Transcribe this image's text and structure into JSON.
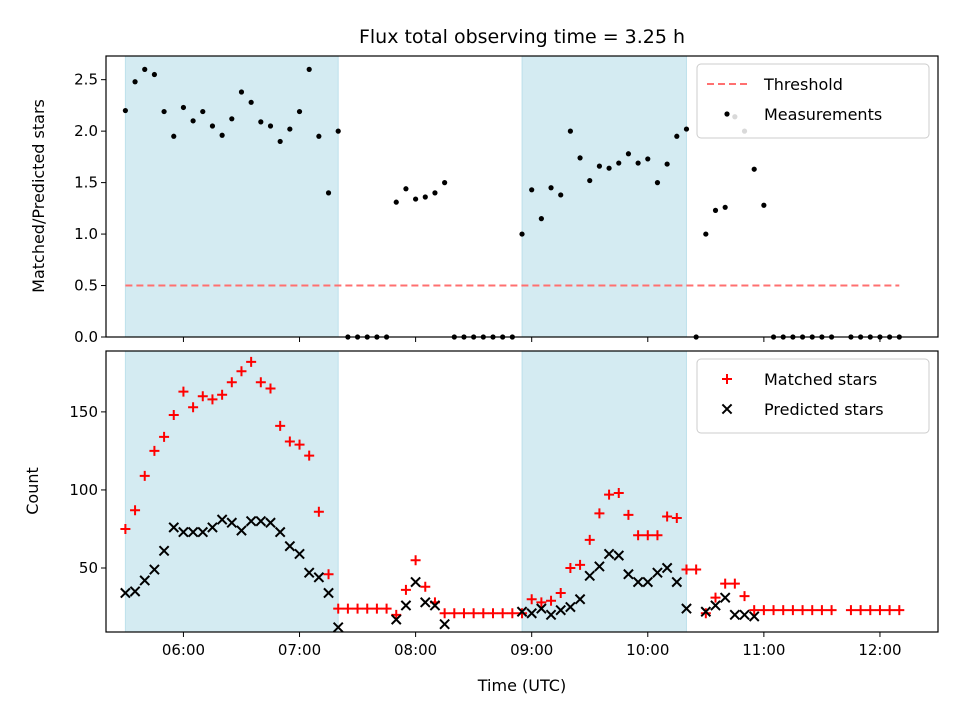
{
  "chart_data": [
    {
      "type": "scatter",
      "title": "Flux total observing time = 3.25 h",
      "ylabel": "Matched/Predicted stars",
      "xlabel": "",
      "xlim": [
        5.333,
        12.5
      ],
      "ylim": [
        0,
        2.73
      ],
      "yticks": [
        0.0,
        0.5,
        1.0,
        1.5,
        2.0,
        2.5
      ],
      "ytick_labels": [
        "0.0",
        "0.5",
        "1.0",
        "1.5",
        "2.0",
        "2.5"
      ],
      "shaded_intervals": [
        [
          "05:30",
          "07:20"
        ],
        [
          "08:55",
          "10:20"
        ]
      ],
      "shade_color": "#add8e6",
      "legend_position": "top-right",
      "series": [
        {
          "name": "Threshold",
          "kind": "dashed-line",
          "color": "#ff7070",
          "x": [
            "05:30",
            "12:10"
          ],
          "y": [
            0.5,
            0.5
          ]
        },
        {
          "name": "Measurements",
          "kind": "dots",
          "color": "#000000",
          "x": [
            "05:30",
            "05:35",
            "05:40",
            "05:45",
            "05:50",
            "05:55",
            "06:00",
            "06:05",
            "06:10",
            "06:15",
            "06:20",
            "06:25",
            "06:30",
            "06:35",
            "06:40",
            "06:45",
            "06:50",
            "06:55",
            "07:00",
            "07:05",
            "07:10",
            "07:15",
            "07:20",
            "07:25",
            "07:30",
            "07:35",
            "07:40",
            "07:45",
            "07:50",
            "07:55",
            "08:00",
            "08:05",
            "08:10",
            "08:15",
            "08:20",
            "08:25",
            "08:30",
            "08:35",
            "08:40",
            "08:45",
            "08:50",
            "08:55",
            "09:00",
            "09:05",
            "09:10",
            "09:15",
            "09:20",
            "09:25",
            "09:30",
            "09:35",
            "09:40",
            "09:45",
            "09:50",
            "09:55",
            "10:00",
            "10:05",
            "10:10",
            "10:15",
            "10:20",
            "10:25",
            "10:30",
            "10:35",
            "10:40",
            "10:45",
            "10:50",
            "10:55",
            "11:00",
            "11:05",
            "11:10",
            "11:15",
            "11:20",
            "11:25",
            "11:30",
            "11:35",
            "11:45",
            "11:50",
            "11:55",
            "12:00",
            "12:05",
            "12:10"
          ],
          "y": [
            2.2,
            2.48,
            2.6,
            2.55,
            2.19,
            1.95,
            2.23,
            2.1,
            2.19,
            2.05,
            1.96,
            2.12,
            2.38,
            2.28,
            2.09,
            2.05,
            1.9,
            2.02,
            2.19,
            2.6,
            1.95,
            1.4,
            2.0,
            0.0,
            0.0,
            0.0,
            0.0,
            0.0,
            1.31,
            1.44,
            1.34,
            1.36,
            1.4,
            1.5,
            0.0,
            0.0,
            0.0,
            0.0,
            0.0,
            0.0,
            0.0,
            1.0,
            1.43,
            1.15,
            1.45,
            1.38,
            2.0,
            1.74,
            1.52,
            1.66,
            1.64,
            1.69,
            1.78,
            1.69,
            1.73,
            1.5,
            1.68,
            1.95,
            2.02,
            0.0,
            1.0,
            1.23,
            1.26,
            2.14,
            2.0,
            1.63,
            1.28,
            0.0,
            0.0,
            0.0,
            0.0,
            0.0,
            0.0,
            0.0,
            0.0,
            0.0,
            0.0,
            0.0,
            0.0,
            0.0
          ]
        }
      ]
    },
    {
      "type": "scatter",
      "title": "",
      "ylabel": "Count",
      "xlabel": "Time (UTC)",
      "xlim": [
        5.333,
        12.5
      ],
      "ylim": [
        9,
        189
      ],
      "yticks": [
        50,
        100,
        150
      ],
      "ytick_labels": [
        "50",
        "100",
        "150"
      ],
      "xticks": [
        "06:00",
        "07:00",
        "08:00",
        "09:00",
        "10:00",
        "11:00",
        "12:00"
      ],
      "shaded_intervals": [
        [
          "05:30",
          "07:20"
        ],
        [
          "08:55",
          "10:20"
        ]
      ],
      "shade_color": "#add8e6",
      "legend_position": "top-right",
      "series": [
        {
          "name": "Matched stars",
          "kind": "plus",
          "color": "#ff0000",
          "x": [
            "05:30",
            "05:35",
            "05:40",
            "05:45",
            "05:50",
            "05:55",
            "06:00",
            "06:05",
            "06:10",
            "06:15",
            "06:20",
            "06:25",
            "06:30",
            "06:35",
            "06:40",
            "06:45",
            "06:50",
            "06:55",
            "07:00",
            "07:05",
            "07:10",
            "07:15",
            "07:20",
            "07:25",
            "07:30",
            "07:35",
            "07:40",
            "07:45",
            "07:50",
            "07:55",
            "08:00",
            "08:05",
            "08:10",
            "08:15",
            "08:20",
            "08:25",
            "08:30",
            "08:35",
            "08:40",
            "08:45",
            "08:50",
            "08:55",
            "09:00",
            "09:05",
            "09:10",
            "09:15",
            "09:20",
            "09:25",
            "09:30",
            "09:35",
            "09:40",
            "09:45",
            "09:50",
            "09:55",
            "10:00",
            "10:05",
            "10:10",
            "10:15",
            "10:20",
            "10:25",
            "10:30",
            "10:35",
            "10:40",
            "10:45",
            "10:50",
            "10:55",
            "11:00",
            "11:05",
            "11:10",
            "11:15",
            "11:20",
            "11:25",
            "11:30",
            "11:35",
            "11:45",
            "11:50",
            "11:55",
            "12:00",
            "12:05",
            "12:10"
          ],
          "y": [
            75,
            87,
            109,
            125,
            134,
            148,
            163,
            153,
            160,
            158,
            161,
            169,
            176,
            182,
            169,
            165,
            141,
            131,
            129,
            122,
            86,
            46,
            24,
            24,
            24,
            24,
            24,
            24,
            20,
            36,
            55,
            38,
            28,
            21,
            21,
            21,
            21,
            21,
            21,
            21,
            21,
            21,
            30,
            28,
            29,
            34,
            50,
            52,
            68,
            85,
            97,
            98,
            84,
            71,
            71,
            71,
            83,
            82,
            49,
            49,
            21,
            31,
            40,
            40,
            32,
            23,
            23,
            23,
            23,
            23,
            23,
            23,
            23,
            23,
            23,
            23,
            23,
            23,
            23,
            23
          ]
        },
        {
          "name": "Predicted stars",
          "kind": "x",
          "color": "#000000",
          "x": [
            "05:30",
            "05:35",
            "05:40",
            "05:45",
            "05:50",
            "05:55",
            "06:00",
            "06:05",
            "06:10",
            "06:15",
            "06:20",
            "06:25",
            "06:30",
            "06:35",
            "06:40",
            "06:45",
            "06:50",
            "06:55",
            "07:00",
            "07:05",
            "07:10",
            "07:15",
            "07:20",
            "07:50",
            "07:55",
            "08:00",
            "08:05",
            "08:10",
            "08:15",
            "08:55",
            "09:00",
            "09:05",
            "09:10",
            "09:15",
            "09:20",
            "09:25",
            "09:30",
            "09:35",
            "09:40",
            "09:45",
            "09:50",
            "09:55",
            "10:00",
            "10:05",
            "10:10",
            "10:15",
            "10:20",
            "10:30",
            "10:35",
            "10:40",
            "10:45",
            "10:50",
            "10:55"
          ],
          "y": [
            34,
            35,
            42,
            49,
            61,
            76,
            73,
            73,
            73,
            76,
            81,
            79,
            74,
            80,
            80,
            79,
            73,
            64,
            59,
            47,
            44,
            34,
            12,
            17,
            26,
            41,
            28,
            26,
            14,
            22,
            21,
            24,
            20,
            23,
            25,
            30,
            45,
            51,
            59,
            58,
            46,
            41,
            41,
            47,
            50,
            41,
            24,
            22,
            26,
            31,
            20,
            20,
            19
          ]
        }
      ]
    }
  ]
}
